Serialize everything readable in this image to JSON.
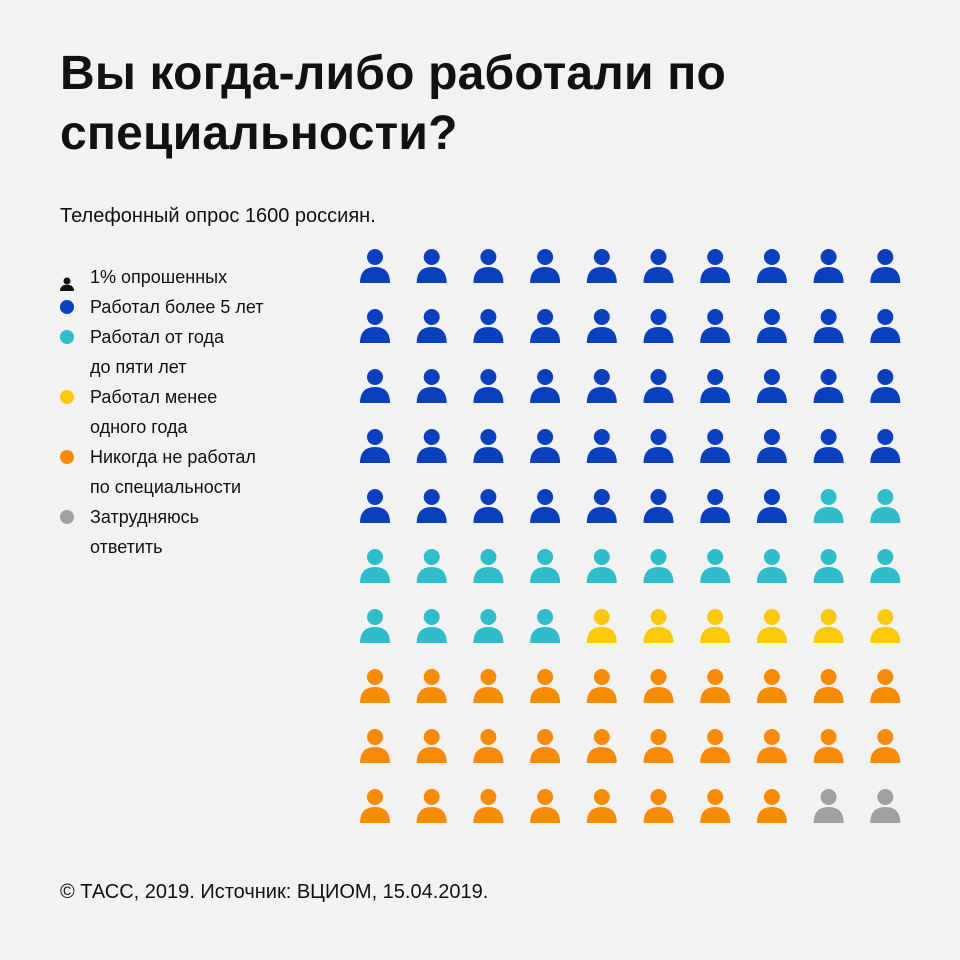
{
  "title": "Вы когда-либо работали по специальности?",
  "subtitle": "Телефонный опрос 1600 россиян.",
  "legend": {
    "unit_label": "1% опрошенных",
    "items": [
      {
        "label": "Работал более 5 лет",
        "color": "#0a3fbe"
      },
      {
        "label": "Работал от года\nдо пяти лет",
        "color": "#2ebdc9"
      },
      {
        "label": "Работал менее\nодного года",
        "color": "#fbc80a"
      },
      {
        "label": "Никогда не работал\nпо специальности",
        "color": "#f98a06"
      },
      {
        "label": "Затрудняюсь\nответить",
        "color": "#a0a0a0"
      }
    ]
  },
  "chart_data": {
    "type": "waffle",
    "unit": "1% опрошенных",
    "grid": {
      "rows": 10,
      "columns": 10
    },
    "categories": [
      "Работал более 5 лет",
      "Работал от года до пяти лет",
      "Работал менее одного года",
      "Никогда не работал по специальности",
      "Затрудняюсь ответить"
    ],
    "values": [
      48,
      16,
      6,
      28,
      2
    ],
    "colors": [
      "#0a3fbe",
      "#2ebdc9",
      "#fbc80a",
      "#f98a06",
      "#a0a0a0"
    ]
  },
  "footer": "© ТАСС, 2019. Источник: ВЦИОМ, 15.04.2019."
}
